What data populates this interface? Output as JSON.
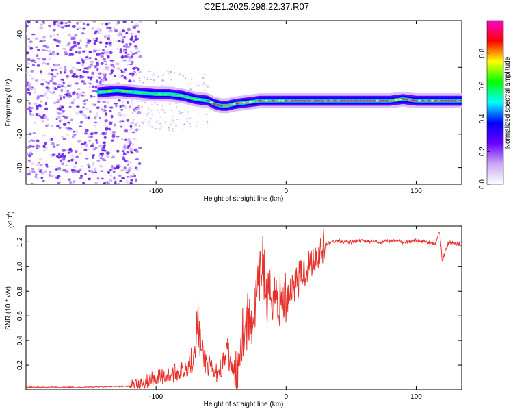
{
  "title": "C2E1.2025.298.22.37.R07",
  "chart_data": [
    {
      "type": "heatmap",
      "title": "C2E1.2025.298.22.37.R07",
      "xlabel": "Height of straight line (km)",
      "ylabel": "Frequency (Hz)",
      "xlim": [
        -200,
        135
      ],
      "ylim": [
        -50,
        48
      ],
      "xticks": [
        -100,
        0,
        100
      ],
      "xtick_labels": [
        "-100",
        "0",
        "100"
      ],
      "yticks": [
        -40,
        -20,
        0,
        20,
        40
      ],
      "ytick_labels": [
        "-40",
        "-20",
        "0",
        "20",
        "40"
      ],
      "ridge_frequency": {
        "x": [
          -145,
          -130,
          -115,
          -100,
          -90,
          -80,
          -70,
          -60,
          -55,
          -50,
          -45,
          -40,
          -30,
          -20,
          -10,
          0,
          20,
          40,
          60,
          80,
          90,
          100,
          120,
          135
        ],
        "y": [
          5,
          6,
          5,
          4,
          4,
          3,
          1,
          0,
          -2,
          -3,
          -3,
          -2,
          -1,
          0,
          0,
          0,
          0,
          0,
          0,
          0,
          1,
          0,
          0,
          0
        ]
      },
      "noise_region_x": [
        -200,
        -120
      ],
      "colorbar": {
        "label": "Normalized spectral amplitude",
        "range": [
          0,
          1
        ],
        "ticks": [
          0.0,
          0.2,
          0.4,
          0.6,
          0.8
        ],
        "tick_labels": [
          "0.0",
          "0.2",
          "0.4",
          "0.6",
          "0.8"
        ],
        "colors": [
          "#ffffff",
          "#c9a7f2",
          "#6a00ff",
          "#0000ff",
          "#00ffff",
          "#00ff00",
          "#ffff00",
          "#ff0000",
          "#ff00cc"
        ]
      }
    },
    {
      "type": "line",
      "xlabel": "Height of straight line (km)",
      "ylabel": "SNR (10 * v/v)",
      "y_multiplier_label": "(x10",
      "y_multiplier_exp": "4",
      "y_multiplier_close": ")",
      "xlim": [
        -200,
        135
      ],
      "ylim": [
        0,
        1.33
      ],
      "xticks": [
        -100,
        0,
        100
      ],
      "xtick_labels": [
        "-100",
        "0",
        "100"
      ],
      "yticks": [
        0.2,
        0.4,
        0.6,
        0.8,
        1.0,
        1.2
      ],
      "ytick_labels": [
        "0.2",
        "0.4",
        "0.6",
        "0.8",
        "1.0",
        "1.2"
      ],
      "color": "#e8302a",
      "series": [
        {
          "name": "SNR",
          "x": [
            -200,
            -160,
            -120,
            -110,
            -100,
            -90,
            -80,
            -72,
            -68,
            -65,
            -60,
            -55,
            -50,
            -45,
            -40,
            -38,
            -35,
            -30,
            -25,
            -20,
            -18,
            -15,
            -10,
            -5,
            0,
            5,
            10,
            15,
            20,
            25,
            30,
            35,
            40,
            50,
            60,
            70,
            80,
            90,
            100,
            110,
            115,
            118,
            120,
            125,
            135
          ],
          "y": [
            0.02,
            0.02,
            0.03,
            0.06,
            0.1,
            0.12,
            0.15,
            0.25,
            0.55,
            0.3,
            0.2,
            0.12,
            0.18,
            0.3,
            0.12,
            0.05,
            0.45,
            0.55,
            0.6,
            0.9,
            1.1,
            0.7,
            0.8,
            0.7,
            0.75,
            0.85,
            0.9,
            0.98,
            1.05,
            1.12,
            1.18,
            1.2,
            1.21,
            1.2,
            1.21,
            1.2,
            1.21,
            1.2,
            1.21,
            1.2,
            1.18,
            1.3,
            1.05,
            1.2,
            1.18
          ]
        }
      ]
    }
  ]
}
